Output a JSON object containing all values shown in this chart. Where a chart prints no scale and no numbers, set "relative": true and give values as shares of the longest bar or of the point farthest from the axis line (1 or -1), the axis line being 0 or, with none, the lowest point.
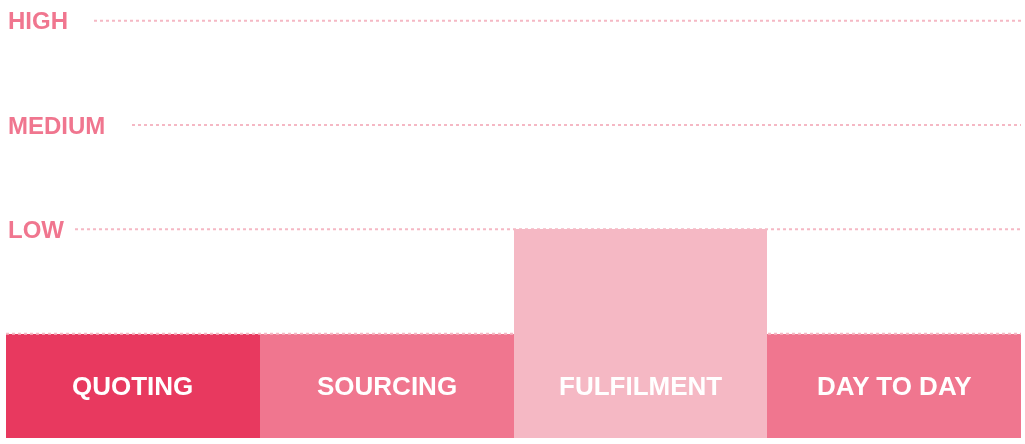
{
  "chart_data": {
    "type": "bar",
    "categories": [
      "QUOTING",
      "SOURCING",
      "FULFILMENT",
      "DAY TO DAY"
    ],
    "values": [
      0.5,
      0.5,
      1,
      0.5
    ],
    "relative": true,
    "colors": [
      "#e8395f",
      "#f0768f",
      "#f5b8c4",
      "#f0768f"
    ],
    "ref_lines": [
      {
        "axis": "y",
        "value": 0.5,
        "label": null,
        "color": "#f5b8c4",
        "line_style": "dotted"
      },
      {
        "axis": "y",
        "value": 1,
        "label": "LOW",
        "color": "#f5b8c4",
        "line_style": "dotted"
      },
      {
        "axis": "y",
        "value": 1.5,
        "label": "MEDIUM",
        "color": "#f5b8c4",
        "line_style": "dotted"
      },
      {
        "axis": "y",
        "value": 2,
        "label": "HIGH",
        "color": "#f5b8c4",
        "line_style": "dotted"
      }
    ],
    "legend": false
  }
}
